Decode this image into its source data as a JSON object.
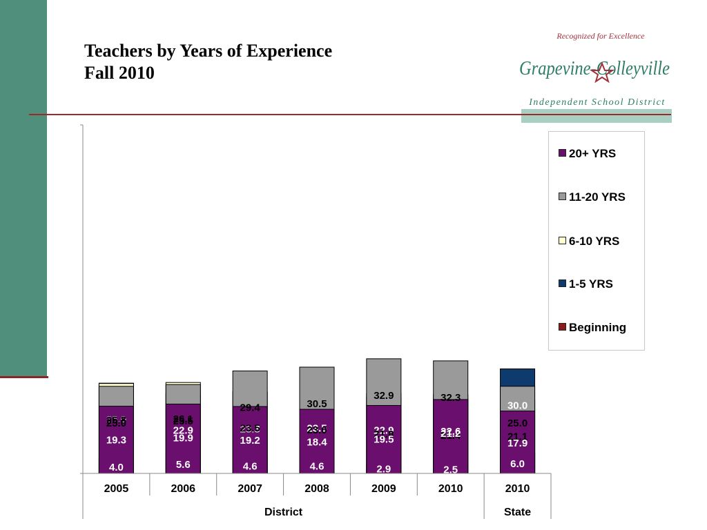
{
  "title": {
    "line1": "Teachers by Years of Experience",
    "line2": "Fall 2010"
  },
  "logo": {
    "tagline": "Recognized for Excellence",
    "name": "Grapevine-Colleyville",
    "subtitle": "Independent School District"
  },
  "colors": {
    "band": "#4f8f7b",
    "rule": "#9b2b2b",
    "logo_green": "#2e7d66",
    "logo_red": "#a0303a"
  },
  "chart_data": {
    "type": "bar",
    "stacked": true,
    "categories": [
      "2005",
      "2006",
      "2007",
      "2008",
      "2009",
      "2010",
      "2010"
    ],
    "groups": [
      {
        "label": "District",
        "span": 6
      },
      {
        "label": "State",
        "span": 1
      }
    ],
    "series": [
      {
        "name": "Beginning",
        "color": "#8b1a1a",
        "values": [
          4.0,
          5.6,
          4.6,
          4.6,
          2.9,
          2.5,
          6.0
        ]
      },
      {
        "name": "1-5 YRS",
        "color": "#0d3b6e",
        "values": [
          25.9,
          22.9,
          23.3,
          23.5,
          22.9,
          22.6,
          30.0
        ]
      },
      {
        "name": "6-10 YRS",
        "color": "#ffffd1",
        "values": [
          25.8,
          26.1,
          23.5,
          23.0,
          21.8,
          21.4,
          21.1
        ]
      },
      {
        "name": "11-20 YRS",
        "color": "#9a9a9a",
        "values": [
          25.0,
          25.5,
          29.4,
          30.5,
          32.9,
          32.3,
          25.0
        ]
      },
      {
        "name": "20+ YRS",
        "color": "#6a0f6d",
        "values": [
          19.3,
          19.9,
          19.2,
          18.4,
          19.5,
          21.2,
          17.9
        ]
      }
    ],
    "ylim": [
      0,
      100
    ],
    "legend_position": "right",
    "grid": false
  }
}
